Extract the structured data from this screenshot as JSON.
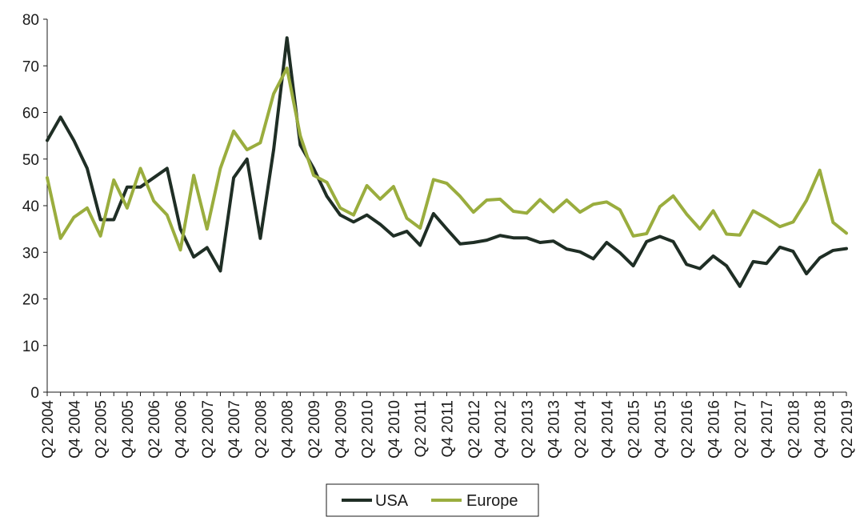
{
  "chart_data": {
    "type": "line",
    "title": "",
    "xlabel": "",
    "ylabel": "",
    "ylim": [
      0,
      80
    ],
    "yticks": [
      0,
      10,
      20,
      30,
      40,
      50,
      60,
      70,
      80
    ],
    "grid": false,
    "legend_position": "bottom",
    "x": [
      "Q2 2004",
      "Q3 2004",
      "Q4 2004",
      "Q1 2005",
      "Q2 2005",
      "Q3 2005",
      "Q4 2005",
      "Q1 2006",
      "Q2 2006",
      "Q3 2006",
      "Q4 2006",
      "Q1 2007",
      "Q2 2007",
      "Q3 2007",
      "Q4 2007",
      "Q1 2008",
      "Q2 2008",
      "Q3 2008",
      "Q4 2008",
      "Q1 2009",
      "Q2 2009",
      "Q3 2009",
      "Q4 2009",
      "Q1 2010",
      "Q2 2010",
      "Q3 2010",
      "Q4 2010",
      "Q1 2011",
      "Q2 2011",
      "Q3 2011",
      "Q4 2011",
      "Q1 2012",
      "Q2 2012",
      "Q3 2012",
      "Q4 2012",
      "Q1 2013",
      "Q2 2013",
      "Q3 2013",
      "Q4 2013",
      "Q1 2014",
      "Q2 2014",
      "Q3 2014",
      "Q4 2014",
      "Q1 2015",
      "Q2 2015",
      "Q3 2015",
      "Q4 2015",
      "Q1 2016",
      "Q2 2016",
      "Q3 2016",
      "Q4 2016",
      "Q1 2017",
      "Q2 2017",
      "Q3 2017",
      "Q4 2017",
      "Q1 2018",
      "Q2 2018",
      "Q3 2018",
      "Q4 2018",
      "Q1 2019",
      "Q2 2019"
    ],
    "x_tick_labels": [
      "Q2 2004",
      "Q4 2004",
      "Q2 2005",
      "Q4 2005",
      "Q2 2006",
      "Q4 2006",
      "Q2 2007",
      "Q4 2007",
      "Q2 2008",
      "Q4 2008",
      "Q2 2009",
      "Q4 2009",
      "Q2 2010",
      "Q4 2010",
      "Q2 2011",
      "Q4 2011",
      "Q2 2012",
      "Q4 2012",
      "Q2 2013",
      "Q4 2013",
      "Q2 2014",
      "Q4 2014",
      "Q2 2015",
      "Q4 2015",
      "Q2 2016",
      "Q4 2016",
      "Q2 2017",
      "Q4 2017",
      "Q2 2018",
      "Q4 2018",
      "Q2 2019"
    ],
    "series": [
      {
        "name": "USA",
        "color": "#1f2e25",
        "values": [
          54,
          59,
          54,
          48,
          37,
          37,
          44,
          44,
          46,
          48,
          35,
          29,
          31,
          26,
          46,
          50,
          33,
          52,
          76,
          53,
          48,
          42,
          38,
          36.5,
          38,
          36,
          33.5,
          34.5,
          31.5,
          38.3,
          35,
          31.8,
          32.1,
          32.6,
          33.6,
          33.1,
          33.1,
          32.1,
          32.4,
          30.7,
          30.1,
          28.6,
          32.1,
          29.9,
          27.1,
          32.3,
          33.4,
          32.3,
          27.4,
          26.5,
          29.2,
          27.1,
          22.7,
          28,
          27.6,
          31.1,
          30.2,
          25.4,
          28.8,
          30.4,
          30.8
        ]
      },
      {
        "name": "Europe",
        "color": "#9aad3e",
        "values": [
          46,
          33,
          37.5,
          39.5,
          33.5,
          45.5,
          39.5,
          48,
          41,
          38,
          30.5,
          46.5,
          35,
          48,
          56,
          52,
          53.5,
          64,
          69.5,
          55,
          46.5,
          45,
          39.5,
          38,
          44.3,
          41.4,
          44.1,
          37.3,
          35.2,
          45.6,
          44.8,
          42,
          38.6,
          41.2,
          41.4,
          38.8,
          38.4,
          41.3,
          38.7,
          41.2,
          38.6,
          40.3,
          40.8,
          39.1,
          33.5,
          34,
          39.8,
          42.1,
          38.2,
          35,
          38.9,
          33.9,
          33.7,
          38.9,
          37.3,
          35.5,
          36.5,
          41.1,
          47.6,
          36.4,
          34.1
        ]
      }
    ]
  }
}
